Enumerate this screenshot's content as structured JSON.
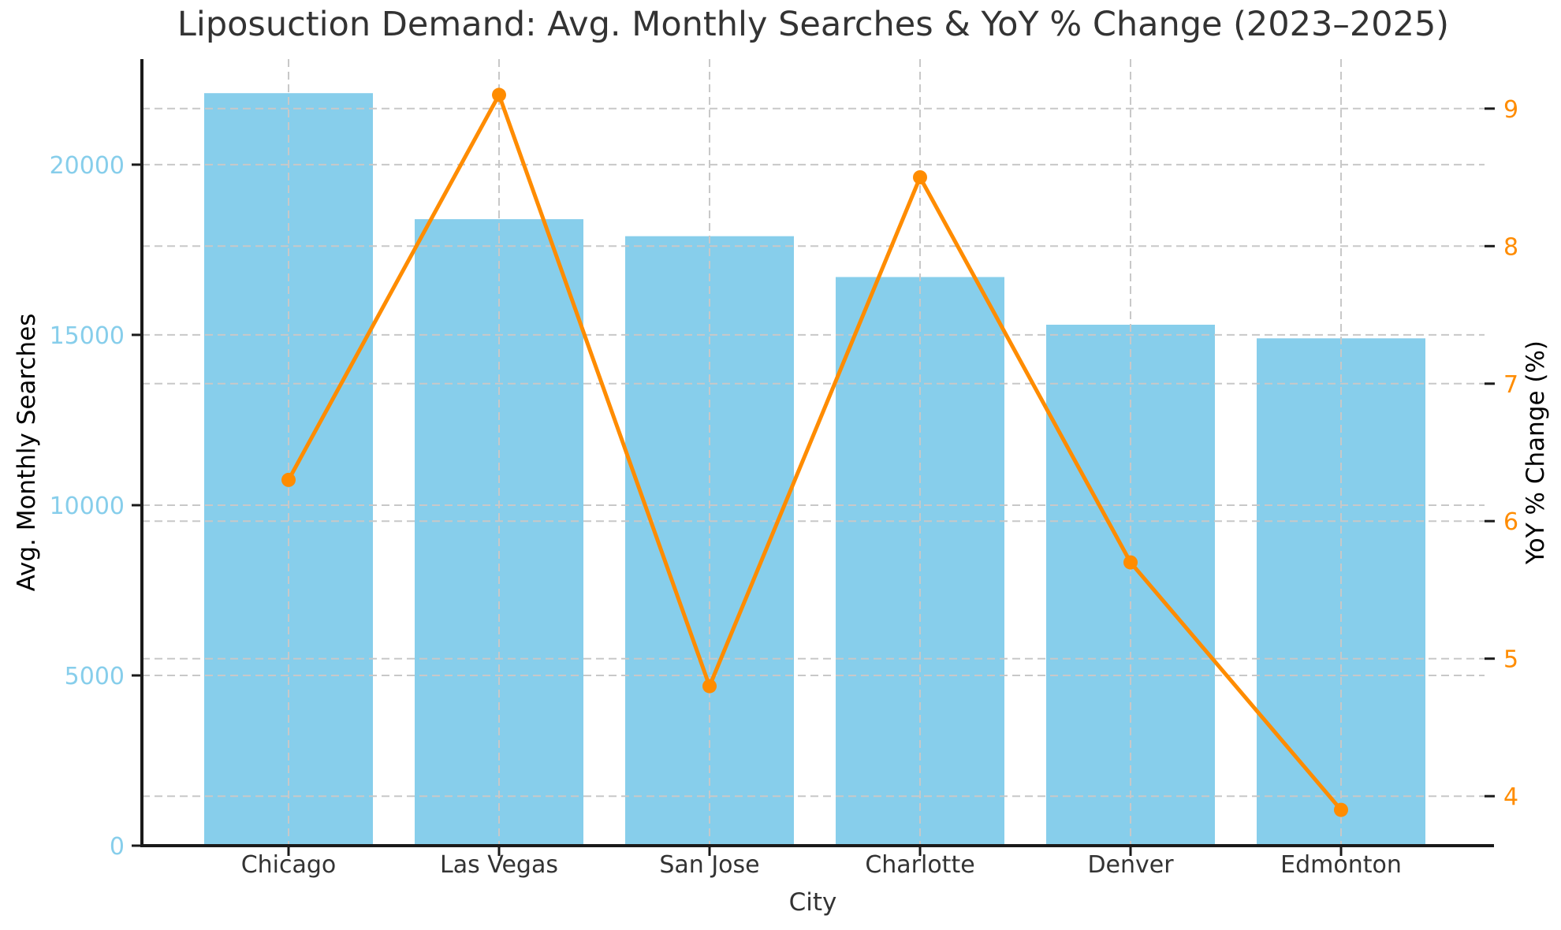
{
  "chart_data": {
    "type": "bar+line",
    "title": "Liposuction Demand: Avg. Monthly Searches & YoY % Change (2023–2025)",
    "xlabel": "City",
    "categories": [
      "Chicago",
      "Las Vegas",
      "San Jose",
      "Charlotte",
      "Denver",
      "Edmonton"
    ],
    "series": [
      {
        "name": "Avg. Monthly Searches",
        "chart": "bar",
        "axis": "left",
        "color": "#87CEEB",
        "values": [
          22100,
          18400,
          17900,
          16700,
          15300,
          14900
        ]
      },
      {
        "name": "YoY % Change (%)",
        "chart": "line",
        "axis": "right",
        "color": "#FF8C00",
        "values": [
          6.3,
          9.1,
          4.8,
          8.5,
          5.7,
          3.9
        ]
      }
    ],
    "left_axis": {
      "label": "Avg. Monthly Searches",
      "ticks": [
        0,
        5000,
        10000,
        15000,
        20000
      ],
      "range": [
        0,
        23100
      ],
      "color": "#87CEEB"
    },
    "right_axis": {
      "label": "YoY % Change (%)",
      "ticks": [
        4,
        5,
        6,
        7,
        8,
        9
      ],
      "range": [
        3.64,
        9.36
      ],
      "color": "#FF8C00"
    },
    "grid": {
      "style": "dashed",
      "color": "#c8c8c8",
      "vertical": true,
      "horizontal": true,
      "above_bars": true
    },
    "styles": {
      "spine_color": "#1a1a1a",
      "text_color": "#333333",
      "background": "#ffffff"
    }
  }
}
